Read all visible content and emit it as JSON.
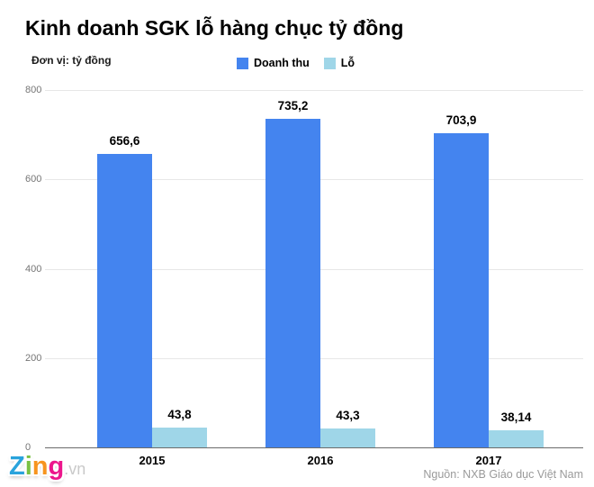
{
  "header": {
    "title": "Kinh doanh SGK lỗ hàng chục tỷ đồng",
    "unit_label": "Đơn vị: tỷ đồng"
  },
  "footer": {
    "logo": {
      "letters": [
        {
          "char": "Z",
          "color": "#29a3dc"
        },
        {
          "char": "i",
          "color": "#7ac143"
        },
        {
          "char": "n",
          "color": "#f7941e"
        },
        {
          "char": "g",
          "color": "#ec168c"
        }
      ],
      "suffix": ".vn",
      "suffix_color": "#c9c9c9"
    },
    "source": "Nguồn: NXB Giáo dục Việt Nam"
  },
  "chart_data": {
    "type": "bar",
    "title": "Kinh doanh SGK lỗ hàng chục tỷ đồng",
    "unit": "tỷ đồng",
    "categories": [
      "2015",
      "2016",
      "2017"
    ],
    "series": [
      {
        "name": "Doanh thu",
        "color": "#4484ef",
        "values": [
          656.6,
          735.2,
          703.9
        ],
        "display_values": [
          "656,6",
          "735,2",
          "703,9"
        ]
      },
      {
        "name": "Lỗ",
        "color": "#9fd6e8",
        "values": [
          43.8,
          43.3,
          38.14
        ],
        "display_values": [
          "43,8",
          "43,3",
          "38,14"
        ]
      }
    ],
    "ylim": [
      0,
      800
    ],
    "yticks": [
      800,
      600,
      400,
      200,
      0
    ],
    "grid": true,
    "legend_position": "top",
    "xlabel": "",
    "ylabel": ""
  }
}
